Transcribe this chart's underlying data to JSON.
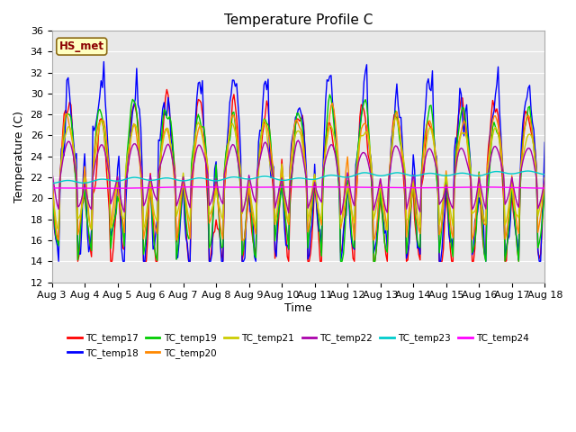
{
  "title": "Temperature Profile C",
  "xlabel": "Time",
  "ylabel": "Temperature (C)",
  "ylim": [
    12,
    36
  ],
  "yticks": [
    12,
    14,
    16,
    18,
    20,
    22,
    24,
    26,
    28,
    30,
    32,
    34,
    36
  ],
  "annotation": "HS_met",
  "annotation_color": "#8B0000",
  "annotation_bg": "#FFFFC0",
  "plot_bg": "#E8E8E8",
  "fig_bg": "#FFFFFF",
  "legend_entries": [
    "TC_temp17",
    "TC_temp18",
    "TC_temp19",
    "TC_temp20",
    "TC_temp21",
    "TC_temp22",
    "TC_temp23",
    "TC_temp24"
  ],
  "line_colors": [
    "#FF0000",
    "#0000FF",
    "#00CC00",
    "#FF8800",
    "#CCCC00",
    "#AA00AA",
    "#00CCCC",
    "#FF00FF"
  ],
  "title_fontsize": 11,
  "axis_label_fontsize": 9,
  "tick_fontsize": 8
}
